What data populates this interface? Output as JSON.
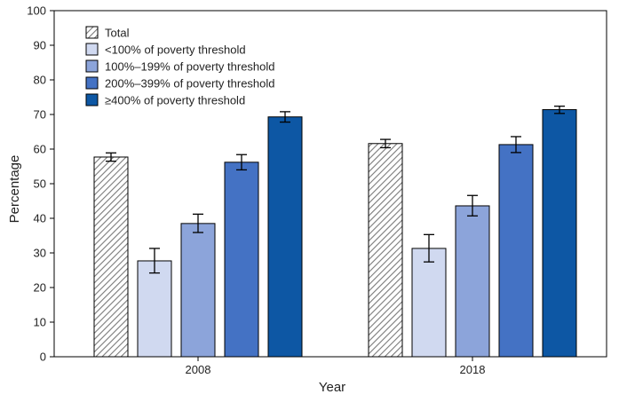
{
  "chart_data": {
    "type": "bar",
    "xlabel": "Year",
    "ylabel": "Percentage",
    "ylim": [
      0,
      100
    ],
    "yticks": [
      0,
      10,
      20,
      30,
      40,
      50,
      60,
      70,
      80,
      90,
      100
    ],
    "grid": false,
    "legend_position": "top-left",
    "categories": [
      "2008",
      "2018"
    ],
    "series": [
      {
        "name": "Total",
        "color": "#ffffff",
        "pattern": "hatch",
        "values": [
          57.7,
          61.6
        ],
        "ci_low": [
          56.5,
          60.4
        ],
        "ci_high": [
          58.9,
          62.8
        ]
      },
      {
        "name": "<100% of poverty threshold",
        "color": "#d0d9f0",
        "values": [
          27.7,
          31.3
        ],
        "ci_low": [
          24.2,
          27.4
        ],
        "ci_high": [
          31.3,
          35.3
        ]
      },
      {
        "name": "100%–199% of poverty threshold",
        "color": "#8ca4da",
        "values": [
          38.5,
          43.6
        ],
        "ci_low": [
          35.9,
          40.7
        ],
        "ci_high": [
          41.2,
          46.6
        ]
      },
      {
        "name": "200%–399% of poverty threshold",
        "color": "#4472c4",
        "values": [
          56.2,
          61.3
        ],
        "ci_low": [
          54.0,
          59.0
        ],
        "ci_high": [
          58.4,
          63.6
        ]
      },
      {
        "name": "≥400% of poverty threshold",
        "color": "#0d57a4",
        "values": [
          69.3,
          71.4
        ],
        "ci_low": [
          67.8,
          70.3
        ],
        "ci_high": [
          70.8,
          72.4
        ]
      }
    ]
  }
}
